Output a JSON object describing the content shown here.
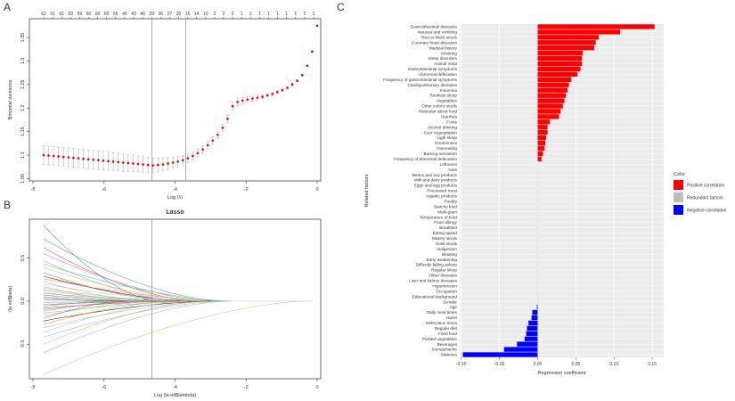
{
  "panels": {
    "a": "A",
    "b": "B",
    "c": "C"
  },
  "chart_data": [
    {
      "type": "scatter",
      "id": "cv",
      "title": "",
      "xlabel": "Log (λ)",
      "ylabel": "Binomial deviance",
      "xlim": [
        -8.1,
        0.1
      ],
      "ylim": [
        1.045,
        1.39
      ],
      "x_ticks": [
        -8,
        -6,
        -4,
        -2,
        0
      ],
      "y_ticks": [
        1.05,
        1.1,
        1.15,
        1.2,
        1.25,
        1.3,
        1.35
      ],
      "top_ticks": [
        "62",
        "61",
        "61",
        "59",
        "59",
        "60",
        "60",
        "60",
        "56",
        "45",
        "43",
        "40",
        "39",
        "36",
        "27",
        "20",
        "16",
        "14",
        "10",
        "3",
        "2",
        "2",
        "1",
        "1",
        "1",
        "1",
        "1",
        "1",
        "1",
        "1",
        "1"
      ],
      "vlines": [
        -4.65,
        -3.7
      ],
      "x": [
        -7.7,
        -7.56,
        -7.42,
        -7.28,
        -7.14,
        -7.0,
        -6.86,
        -6.72,
        -6.58,
        -6.44,
        -6.3,
        -6.16,
        -6.02,
        -5.88,
        -5.74,
        -5.6,
        -5.46,
        -5.32,
        -5.18,
        -5.04,
        -4.9,
        -4.76,
        -4.62,
        -4.48,
        -4.34,
        -4.2,
        -4.06,
        -3.92,
        -3.78,
        -3.64,
        -3.5,
        -3.36,
        -3.22,
        -3.08,
        -2.94,
        -2.8,
        -2.66,
        -2.52,
        -2.38,
        -2.24,
        -2.1,
        -1.96,
        -1.82,
        -1.68,
        -1.54,
        -1.4,
        -1.26,
        -1.12,
        -0.98,
        -0.84,
        -0.7,
        -0.56,
        -0.42,
        -0.28,
        -0.14,
        0.0
      ],
      "y": [
        1.1,
        1.099,
        1.098,
        1.097,
        1.096,
        1.095,
        1.094,
        1.093,
        1.092,
        1.091,
        1.09,
        1.089,
        1.088,
        1.087,
        1.086,
        1.085,
        1.084,
        1.083,
        1.082,
        1.081,
        1.08,
        1.079,
        1.078,
        1.079,
        1.08,
        1.082,
        1.084,
        1.086,
        1.089,
        1.093,
        1.098,
        1.104,
        1.112,
        1.121,
        1.131,
        1.143,
        1.158,
        1.177,
        1.204,
        1.213,
        1.216,
        1.218,
        1.22,
        1.222,
        1.224,
        1.227,
        1.23,
        1.234,
        1.238,
        1.243,
        1.25,
        1.258,
        1.27,
        1.29,
        1.32,
        1.375
      ],
      "err": [
        0.02,
        0.02,
        0.02,
        0.02,
        0.02,
        0.02,
        0.02,
        0.02,
        0.02,
        0.02,
        0.02,
        0.02,
        0.02,
        0.019,
        0.019,
        0.019,
        0.019,
        0.018,
        0.018,
        0.017,
        0.017,
        0.016,
        0.016,
        0.015,
        0.014,
        0.013,
        0.012,
        0.011,
        0.01,
        0.009,
        0.008,
        0.008,
        0.008,
        0.008,
        0.008,
        0.008,
        0.008,
        0.008,
        0.009,
        0.008,
        0.007,
        0.006,
        0.005,
        0.005,
        0.004,
        0.004,
        0.004,
        0.003,
        0.003,
        0.003,
        0.003,
        0.002,
        0.002,
        0.001,
        0.001,
        0.0
      ],
      "point_color": "#e60000",
      "grid": false
    },
    {
      "type": "line",
      "id": "lasso",
      "title": "Lasso",
      "xlabel": "Log (la ed$lambda)",
      "ylabel": "(la ed$beta)",
      "xlim": [
        -8.1,
        0.1
      ],
      "ylim": [
        -0.9,
        0.95
      ],
      "x_ticks": [
        -8,
        -6,
        -4,
        -2,
        0
      ],
      "y_ticks": [
        -0.5,
        0.0,
        0.5
      ],
      "y_tick_labels": [
        "-0.5",
        "0.0",
        "0.5"
      ],
      "vline": -4.65,
      "x_start": -7.7,
      "series": [
        {
          "start": 0.88,
          "shrink": -4.5
        },
        {
          "start": 0.72,
          "shrink": -2.7
        },
        {
          "start": 0.62,
          "shrink": -3.4
        },
        {
          "start": 0.55,
          "shrink": -2.9
        },
        {
          "start": 0.47,
          "shrink": -3.8
        },
        {
          "start": 0.43,
          "shrink": -2.4
        },
        {
          "start": 0.39,
          "shrink": -3.1
        },
        {
          "start": 0.33,
          "shrink": -4.0
        },
        {
          "start": 0.29,
          "shrink": -3.5
        },
        {
          "start": 0.26,
          "shrink": -2.6
        },
        {
          "start": 0.23,
          "shrink": -4.7
        },
        {
          "start": 0.2,
          "shrink": -3.2
        },
        {
          "start": 0.17,
          "shrink": -5.1
        },
        {
          "start": 0.15,
          "shrink": -3.9
        },
        {
          "start": 0.13,
          "shrink": -4.4
        },
        {
          "start": 0.11,
          "shrink": -5.5
        },
        {
          "start": 0.09,
          "shrink": -3.6
        },
        {
          "start": 0.07,
          "shrink": -4.9
        },
        {
          "start": 0.05,
          "shrink": -6.0
        },
        {
          "start": 0.03,
          "shrink": -5.3
        },
        {
          "start": 0.02,
          "shrink": -4.2
        },
        {
          "start": -0.02,
          "shrink": -5.0
        },
        {
          "start": -0.04,
          "shrink": -4.1
        },
        {
          "start": -0.06,
          "shrink": -5.7
        },
        {
          "start": -0.08,
          "shrink": -3.7
        },
        {
          "start": -0.1,
          "shrink": -4.6
        },
        {
          "start": -0.12,
          "shrink": -5.2
        },
        {
          "start": -0.14,
          "shrink": -3.3
        },
        {
          "start": -0.17,
          "shrink": -4.3
        },
        {
          "start": -0.2,
          "shrink": -5.4
        },
        {
          "start": -0.23,
          "shrink": -3.0
        },
        {
          "start": -0.27,
          "shrink": -4.0
        },
        {
          "start": -0.31,
          "shrink": -2.8
        },
        {
          "start": -0.36,
          "shrink": -3.6
        },
        {
          "start": -0.42,
          "shrink": -2.6
        },
        {
          "start": -0.5,
          "shrink": -3.1
        },
        {
          "start": -0.6,
          "shrink": -2.5
        },
        {
          "start": -0.85,
          "shrink": -0.3
        }
      ],
      "palette": [
        "#1f77b4",
        "#2ca02c",
        "#d62728",
        "#9467bd",
        "#e377c2",
        "#17becf",
        "#bcbd22",
        "#8c564b",
        "#000000",
        "#ff7f0e",
        "#7fc97f",
        "#beaed4",
        "#66c2a5",
        "#fc8d62",
        "#8da0cb",
        "#a6d854",
        "#4daf4a",
        "#e41a1c",
        "#377eb8",
        "#984ea3",
        "#00bfc4",
        "#f8766d"
      ]
    },
    {
      "type": "bar",
      "id": "coef",
      "orientation": "horizontal",
      "title": "",
      "xlabel": "Regression coefficient",
      "ylabel": "Related factors",
      "xlim": [
        -0.102,
        0.165
      ],
      "x_ticks": [
        -0.1,
        -0.05,
        0.0,
        0.05,
        0.1,
        0.15
      ],
      "x_tick_labels": [
        "-0.10",
        "-0.05",
        "0.00",
        "0.05",
        "0.10",
        "0.15"
      ],
      "grid": true,
      "background": "#ebebeb",
      "categories": [
        "Gastrointestinal diseases",
        "Nausea and vomiting",
        "Red or black stools",
        "Coronary heart diseases",
        "Medical history",
        "Smoking",
        "Sleep disorders",
        "Animal meat",
        "Gastrointestinal symptoms",
        "Abnormal defecation",
        "Frequency of gastrointestinal symptoms",
        "Cardiopulmonary diseases",
        "Insomnia",
        "Restless sleep",
        "Vegetables",
        "Other color's stools",
        "Particular about food",
        "Diarrhea",
        "Fruits",
        "Alcohol drinking",
        "Sour regurgitation",
        "Light sleep",
        "Dreaminess",
        "Overeating",
        "Burning sensation",
        "Frequency of abnormal defecation",
        "Leftovers",
        "Nuts",
        "Beans and soy products",
        "Milk and dairy products",
        "Eggs and egg products",
        "Processed meat",
        "Aquatic products",
        "Poultry",
        "Starchy food",
        "Multi-grain",
        "Temperature of food",
        "Food allergy",
        "Breakfast",
        "Eating speed",
        "Watery stools",
        "Solid stools",
        "Indigestion",
        "Bloating",
        "Early awakening",
        "Difficulty falling asleep",
        "Regular sleep",
        "Other diseases",
        "Liver and kidney diseases",
        "Hypertension",
        "Occupation",
        "Educational background",
        "Gender",
        "Age",
        "Daily meal times",
        "Hazel",
        "Defecation times",
        "Regular diet",
        "Fried food",
        "Pickled vegetables",
        "Beverages",
        "Stomachache",
        "Diabetes"
      ],
      "values": [
        0.153,
        0.108,
        0.08,
        0.076,
        0.074,
        0.059,
        0.058,
        0.058,
        0.056,
        0.052,
        0.044,
        0.041,
        0.039,
        0.037,
        0.035,
        0.033,
        0.03,
        0.028,
        0.016,
        0.013,
        0.013,
        0.011,
        0.01,
        0.009,
        0.007,
        0.005,
        0.0,
        0.0,
        0.0,
        0.0,
        0.0,
        0.0,
        0.0,
        0.0,
        0.0,
        0.0,
        0.0,
        0.0,
        0.0,
        0.0,
        0.0,
        0.0,
        0.0,
        0.0,
        0.0,
        0.0,
        0.0,
        0.0,
        0.0,
        0.0,
        0.0,
        0.0,
        0.0,
        -0.001,
        -0.007,
        -0.008,
        -0.012,
        -0.014,
        -0.015,
        -0.017,
        -0.027,
        -0.044,
        -0.098
      ],
      "legend": {
        "title": "Color",
        "position": "right",
        "items": [
          {
            "label": "Positive correlation",
            "color": "#ff0000"
          },
          {
            "label": "Redundant factors",
            "color": "#bdbdbd"
          },
          {
            "label": "Negative correlation",
            "color": "#0000ff"
          }
        ]
      }
    }
  ]
}
